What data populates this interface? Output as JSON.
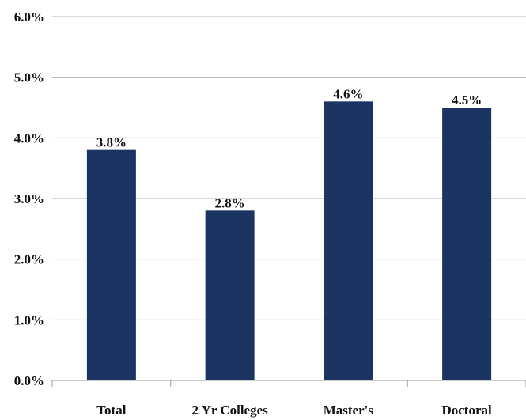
{
  "chart_data": {
    "type": "bar",
    "title": "",
    "xlabel": "",
    "ylabel": "",
    "categories": [
      "Total",
      "2 Yr Colleges",
      "Master's",
      "Doctoral"
    ],
    "values": [
      3.8,
      2.8,
      4.6,
      4.5
    ],
    "data_labels": [
      "3.8%",
      "2.8%",
      "4.6%",
      "4.5%"
    ],
    "ylim": [
      0,
      6
    ],
    "y_ticks": [
      0,
      1,
      2,
      3,
      4,
      5,
      6
    ],
    "y_tick_labels": [
      "0.0%",
      "1.0%",
      "2.0%",
      "3.0%",
      "4.0%",
      "5.0%",
      "6.0%"
    ],
    "grid": true,
    "legend": "none",
    "colors": {
      "bar": "#1c3461",
      "gridline": "#b3b3b3",
      "axis": "#9a9a9a",
      "text": "#111111"
    }
  }
}
